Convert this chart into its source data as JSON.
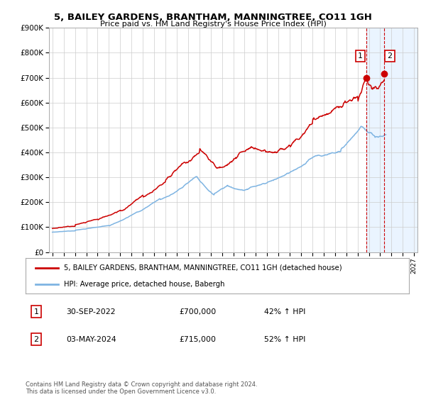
{
  "title": "5, BAILEY GARDENS, BRANTHAM, MANNINGTREE, CO11 1GH",
  "subtitle": "Price paid vs. HM Land Registry's House Price Index (HPI)",
  "ylim": [
    0,
    900000
  ],
  "yticks": [
    0,
    100000,
    200000,
    300000,
    400000,
    500000,
    600000,
    700000,
    800000,
    900000
  ],
  "ytick_labels": [
    "£0",
    "£100K",
    "£200K",
    "£300K",
    "£400K",
    "£500K",
    "£600K",
    "£700K",
    "£800K",
    "£900K"
  ],
  "xlim_start": 1994.7,
  "xlim_end": 2027.3,
  "legend1_label": "5, BAILEY GARDENS, BRANTHAM, MANNINGTREE, CO11 1GH (detached house)",
  "legend2_label": "HPI: Average price, detached house, Babergh",
  "transaction1_date": "30-SEP-2022",
  "transaction1_price": "£700,000",
  "transaction1_hpi": "42% ↑ HPI",
  "transaction2_date": "03-MAY-2024",
  "transaction2_price": "£715,000",
  "transaction2_hpi": "52% ↑ HPI",
  "footer": "Contains HM Land Registry data © Crown copyright and database right 2024.\nThis data is licensed under the Open Government Licence v3.0.",
  "line1_color": "#cc0000",
  "line2_color": "#7eb4e2",
  "shade_color": "#ddeeff",
  "transaction1_x": 2022.75,
  "transaction2_x": 2024.35,
  "background_color": "#ffffff",
  "grid_color": "#cccccc"
}
